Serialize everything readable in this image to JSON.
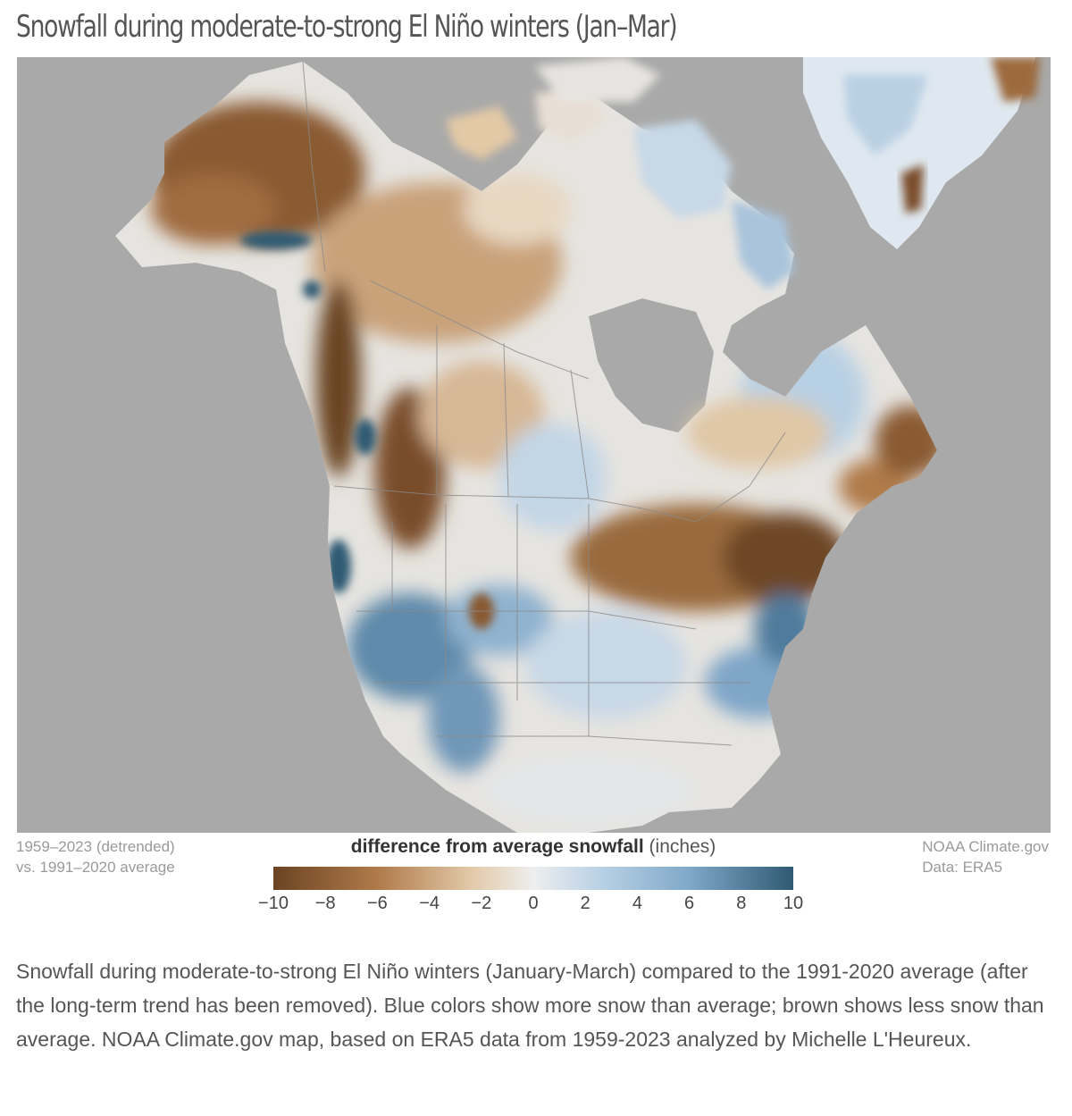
{
  "title": "Snowfall during moderate-to-strong El Niño winters (Jan–Mar)",
  "period_note": [
    "1959–2023 (detrended)",
    "vs. 1991–2020 average"
  ],
  "credit_note": [
    "NOAA Climate.gov",
    "Data: ERA5"
  ],
  "legend": {
    "title_bold": "difference from average snowfall",
    "title_unit": "(inches)",
    "min": -10,
    "max": 10,
    "ticks": [
      "−10",
      "−8",
      "−6",
      "−4",
      "−2",
      "0",
      "2",
      "4",
      "6",
      "8",
      "10"
    ],
    "tick_values": [
      -10,
      -8,
      -6,
      -4,
      -2,
      0,
      2,
      4,
      6,
      8,
      10
    ],
    "colors": {
      "strong_negative": "#6b4423",
      "mid_negative": "#b07a4a",
      "weak_negative": "#e2c9a8",
      "neutral": "#eeeeee",
      "weak_positive": "#bcd3e6",
      "mid_positive": "#7fa8c9",
      "strong_positive": "#2f5a72"
    }
  },
  "map_colors": {
    "ocean": "#a9a9a9",
    "land_neutral": "#e8e6e2",
    "borders": "#8a8a8a"
  },
  "caption": "Snowfall during moderate-to-strong El Niño winters (January-March) compared to the 1991-2020 average (after the long-term trend has been removed). Blue colors show more snow than average; brown shows less snow than average. NOAA Climate.gov map, based on ERA5 data from 1959-2023 analyzed by Michelle L'Heureux."
}
